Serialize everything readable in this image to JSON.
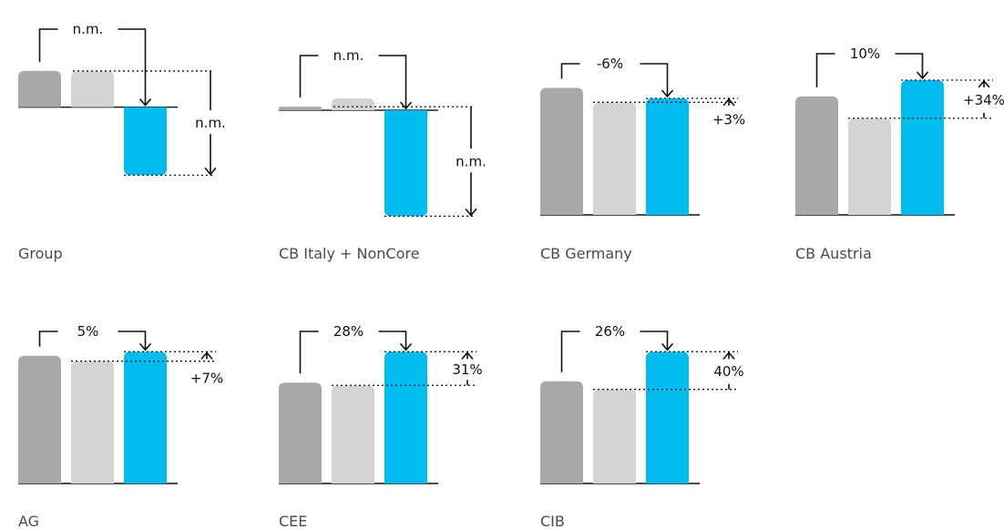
{
  "colors": {
    "bar_prev_year": "#a7a8aa",
    "bar_prev_quarter": "#d3d4d3",
    "bar_current": "#00bcf0",
    "line": "#111111",
    "segment_label": "#4a4a4a"
  },
  "chart_data": [
    {
      "type": "bar",
      "title": "Group",
      "values": [
        0.33,
        0.33,
        -0.62
      ],
      "ylim": [
        -0.7,
        0.62
      ],
      "top_label": "n.m.",
      "side_label": "n.m.",
      "side_direction": "down"
    },
    {
      "type": "bar",
      "title": "CB Italy + NonCore",
      "values": [
        0.03,
        0.1,
        -0.9
      ],
      "ylim": [
        -0.92,
        0.38
      ],
      "top_label": "n.m.",
      "side_label": "n.m.",
      "side_direction": "down"
    },
    {
      "type": "bar",
      "title": "CB Germany",
      "values": [
        0.97,
        0.86,
        0.89
      ],
      "ylim": [
        0,
        1.05
      ],
      "top_label": "-6%",
      "side_label": "+3%",
      "side_direction": "up"
    },
    {
      "type": "bar",
      "title": "CB Austria",
      "values": [
        0.87,
        0.71,
        0.99
      ],
      "ylim": [
        0,
        1.05
      ],
      "top_label": "10%",
      "side_label": "+34%",
      "side_direction": "up"
    },
    {
      "type": "bar",
      "title": "AG",
      "values": [
        0.95,
        0.91,
        0.98
      ],
      "ylim": [
        0,
        1.05
      ],
      "top_label": "5%",
      "side_label": "+7%",
      "side_direction": "up"
    },
    {
      "type": "bar",
      "title": "CEE",
      "values": [
        0.75,
        0.73,
        0.98
      ],
      "ylim": [
        0,
        1.05
      ],
      "top_label": "28%",
      "side_label": "31%",
      "side_direction": "up"
    },
    {
      "type": "bar",
      "title": "CIB",
      "values": [
        0.76,
        0.7,
        0.98
      ],
      "ylim": [
        0,
        1.05
      ],
      "top_label": "26%",
      "side_label": "40%",
      "side_direction": "up"
    }
  ]
}
